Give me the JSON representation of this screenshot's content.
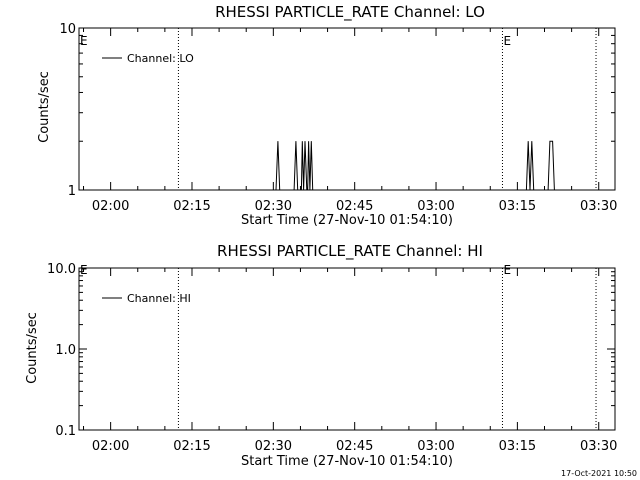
{
  "chart_data": [
    {
      "type": "line",
      "title": "RHESSI PARTICLE_RATE Channel: LO",
      "xlabel": "Start Time (27-Nov-10 01:54:10)",
      "ylabel": "Counts/sec",
      "yscale": "log",
      "xlim": [
        "01:54:10",
        "03:33:00"
      ],
      "ylim": [
        1,
        10
      ],
      "x_ticks": [
        "02:00",
        "02:15",
        "02:30",
        "02:45",
        "03:00",
        "03:15",
        "03:30"
      ],
      "y_ticks": [
        "1",
        "10"
      ],
      "legend": {
        "entries": [
          "Channel: LO"
        ],
        "placement": "top-left"
      },
      "event_markers": [
        {
          "time": "02:12:30",
          "style": "dotted"
        },
        {
          "time": "03:12:15",
          "style": "dotted",
          "flag": "E"
        },
        {
          "time": "03:29:30",
          "style": "dotted"
        }
      ],
      "left_flag": "E",
      "series": [
        {
          "values": [
            [
              "02:30:30",
              1
            ],
            [
              "02:30:50",
              2
            ],
            [
              "02:31:10",
              1
            ],
            [
              "02:33:50",
              1
            ],
            [
              "02:34:10",
              2
            ],
            [
              "02:34:30",
              1
            ],
            [
              "02:35:10",
              1
            ],
            [
              "02:35:20",
              2
            ],
            [
              "02:35:35",
              1
            ],
            [
              "02:35:50",
              2
            ],
            [
              "02:36:10",
              1
            ],
            [
              "02:36:20",
              1
            ],
            [
              "02:36:30",
              2
            ],
            [
              "02:36:45",
              1
            ],
            [
              "02:37:00",
              2
            ],
            [
              "02:37:15",
              1
            ],
            [
              "03:16:40",
              1
            ],
            [
              "03:17:00",
              2
            ],
            [
              "03:17:20",
              1
            ],
            [
              "03:17:40",
              2
            ],
            [
              "03:18:00",
              1
            ],
            [
              "03:20:40",
              1
            ],
            [
              "03:21:00",
              2
            ],
            [
              "03:21:30",
              2
            ],
            [
              "03:21:50",
              1
            ]
          ]
        }
      ]
    },
    {
      "type": "line",
      "title": "RHESSI PARTICLE_RATE Channel: HI",
      "xlabel": "Start Time (27-Nov-10 01:54:10)",
      "ylabel": "Counts/sec",
      "yscale": "log",
      "xlim": [
        "01:54:10",
        "03:33:00"
      ],
      "ylim": [
        0.1,
        10
      ],
      "x_ticks": [
        "02:00",
        "02:15",
        "02:30",
        "02:45",
        "03:00",
        "03:15",
        "03:30"
      ],
      "y_ticks": [
        "10.0",
        "1.0",
        "0.1"
      ],
      "legend": {
        "entries": [
          "Channel: HI"
        ],
        "placement": "top-left"
      },
      "event_markers": [
        {
          "time": "02:12:30",
          "style": "dotted"
        },
        {
          "time": "03:12:15",
          "style": "dotted",
          "flag": "E"
        },
        {
          "time": "03:29:30",
          "style": "dotted"
        }
      ],
      "left_flag": "E",
      "series": [
        {
          "values": []
        }
      ]
    }
  ],
  "footer": {
    "timestamp": "17-Oct-2021 10:50"
  }
}
